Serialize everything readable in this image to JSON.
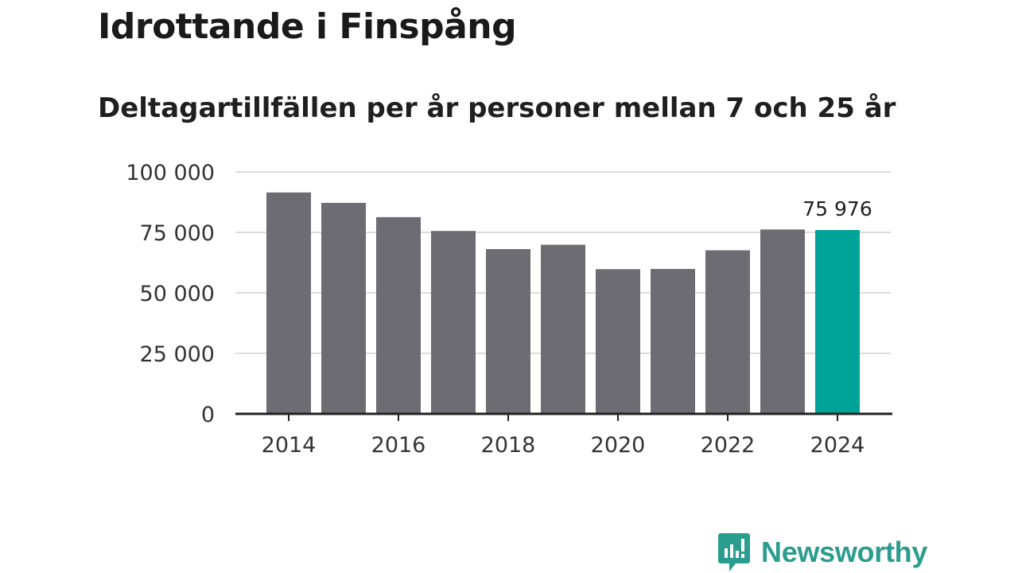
{
  "title": "Idrottande i Finspång",
  "subtitle": "Deltagartillfällen per år personer mellan 7 och 25 år",
  "brand": {
    "name": "Newsworthy",
    "color": "#2a9d8f"
  },
  "colors": {
    "bar": "#6d6c72",
    "highlight": "#00a398",
    "grid": "#dcdcdc",
    "axis": "#222222"
  },
  "chart_data": {
    "type": "bar",
    "title": "Idrottande i Finspång",
    "subtitle": "Deltagartillfällen per år personer mellan 7 och 25 år",
    "xlabel": "",
    "ylabel": "",
    "categories": [
      "2014",
      "2015",
      "2016",
      "2017",
      "2018",
      "2019",
      "2020",
      "2021",
      "2022",
      "2023",
      "2024"
    ],
    "values": [
      91500,
      87200,
      81300,
      75600,
      68100,
      69900,
      59800,
      59900,
      67600,
      76200,
      75976
    ],
    "highlight_index": 10,
    "data_labels": [
      {
        "index": 10,
        "text": "75 976"
      }
    ],
    "ylim": [
      0,
      100000
    ],
    "yticks": [
      {
        "value": 0,
        "label": "0"
      },
      {
        "value": 25000,
        "label": "25 000"
      },
      {
        "value": 50000,
        "label": "50 000"
      },
      {
        "value": 75000,
        "label": "75 000"
      },
      {
        "value": 100000,
        "label": "100 000"
      }
    ],
    "xticks": [
      "2014",
      "2016",
      "2018",
      "2020",
      "2022",
      "2024"
    ],
    "grid": true
  }
}
